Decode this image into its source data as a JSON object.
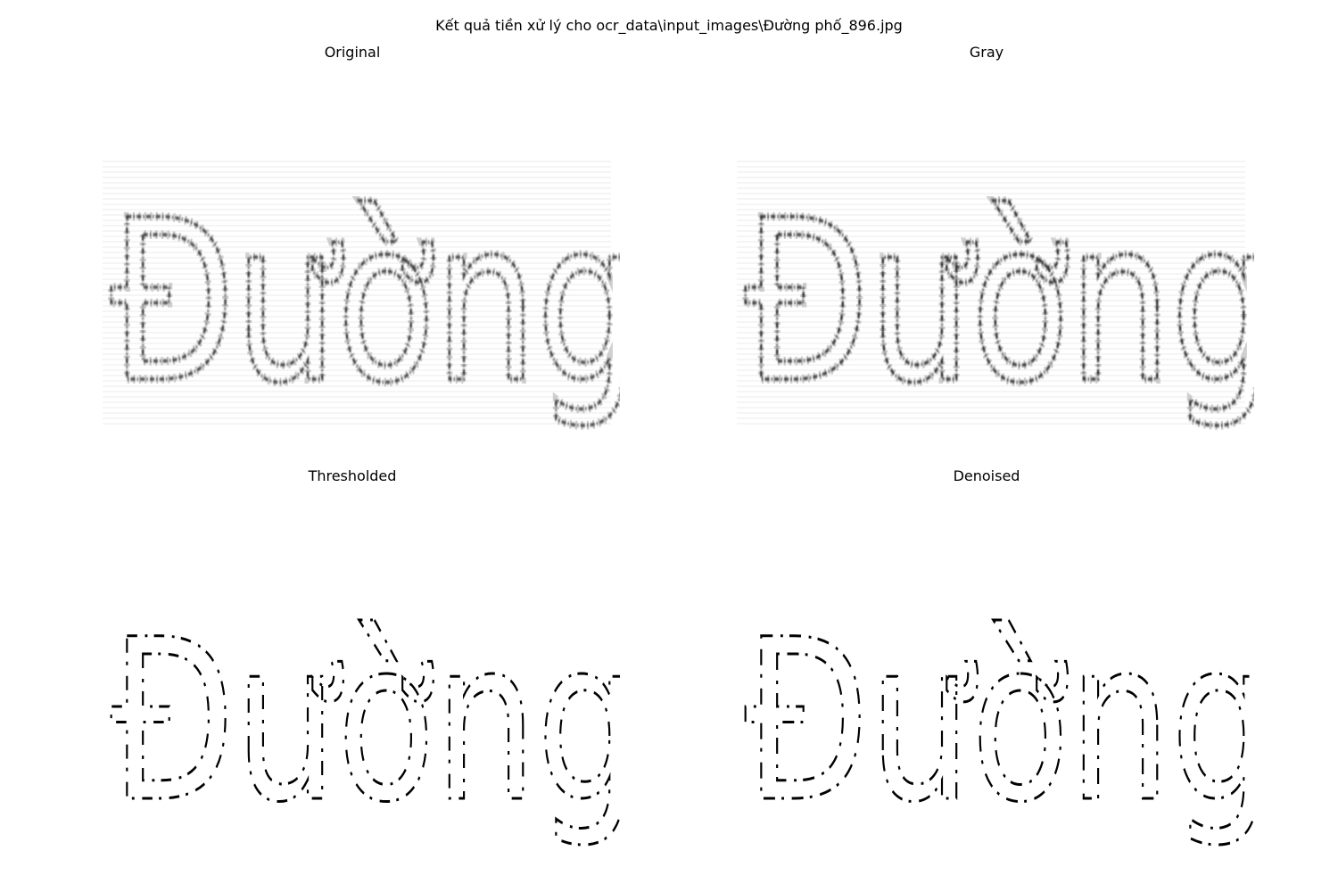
{
  "figure": {
    "suptitle": "Kết quả tiền xử lý cho ocr_data\\input_images\\Đường phố_896.jpg"
  },
  "panels": [
    {
      "id": "original",
      "title": "Original",
      "word": "Đường phố",
      "style": "soft-gray"
    },
    {
      "id": "gray",
      "title": "Gray",
      "word": "Đường phố",
      "style": "soft-gray"
    },
    {
      "id": "thresholded",
      "title": "Thresholded",
      "word": "Đường phố",
      "style": "binary-fragments"
    },
    {
      "id": "denoised",
      "title": "Denoised",
      "word": "Đường phố",
      "style": "binary-fragments"
    }
  ],
  "colors": {
    "background": "#ffffff",
    "ink": "#000000",
    "soft_ink": "#3a3a3a",
    "noise": "#bdbdbd"
  }
}
